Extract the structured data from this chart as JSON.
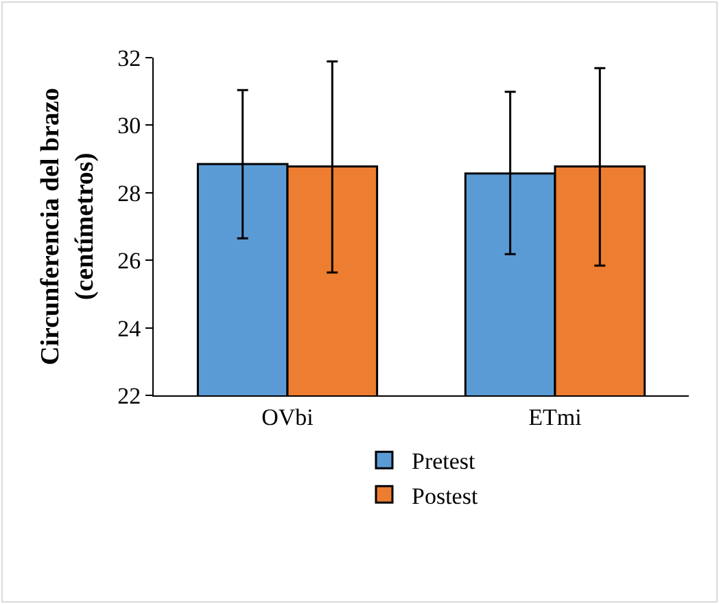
{
  "chart_data": {
    "type": "bar",
    "ylabel": "Circunferencia del brazo\n(centímetros)",
    "categories": [
      "OVbi",
      "ETmi"
    ],
    "series": [
      {
        "name": "Pretest",
        "color": "#5b9bd5",
        "values": [
          28.85,
          28.57
        ],
        "errors": [
          [
            26.65,
            31.04
          ],
          [
            26.18,
            30.99
          ]
        ]
      },
      {
        "name": "Postest",
        "color": "#ed7d31",
        "values": [
          28.78,
          28.78
        ],
        "errors": [
          [
            25.64,
            31.89
          ],
          [
            25.84,
            31.69
          ]
        ]
      }
    ],
    "ylim": [
      22,
      32
    ],
    "yticks": [
      22,
      24,
      26,
      28,
      30,
      32
    ],
    "grid": false,
    "legend": "bottom"
  }
}
